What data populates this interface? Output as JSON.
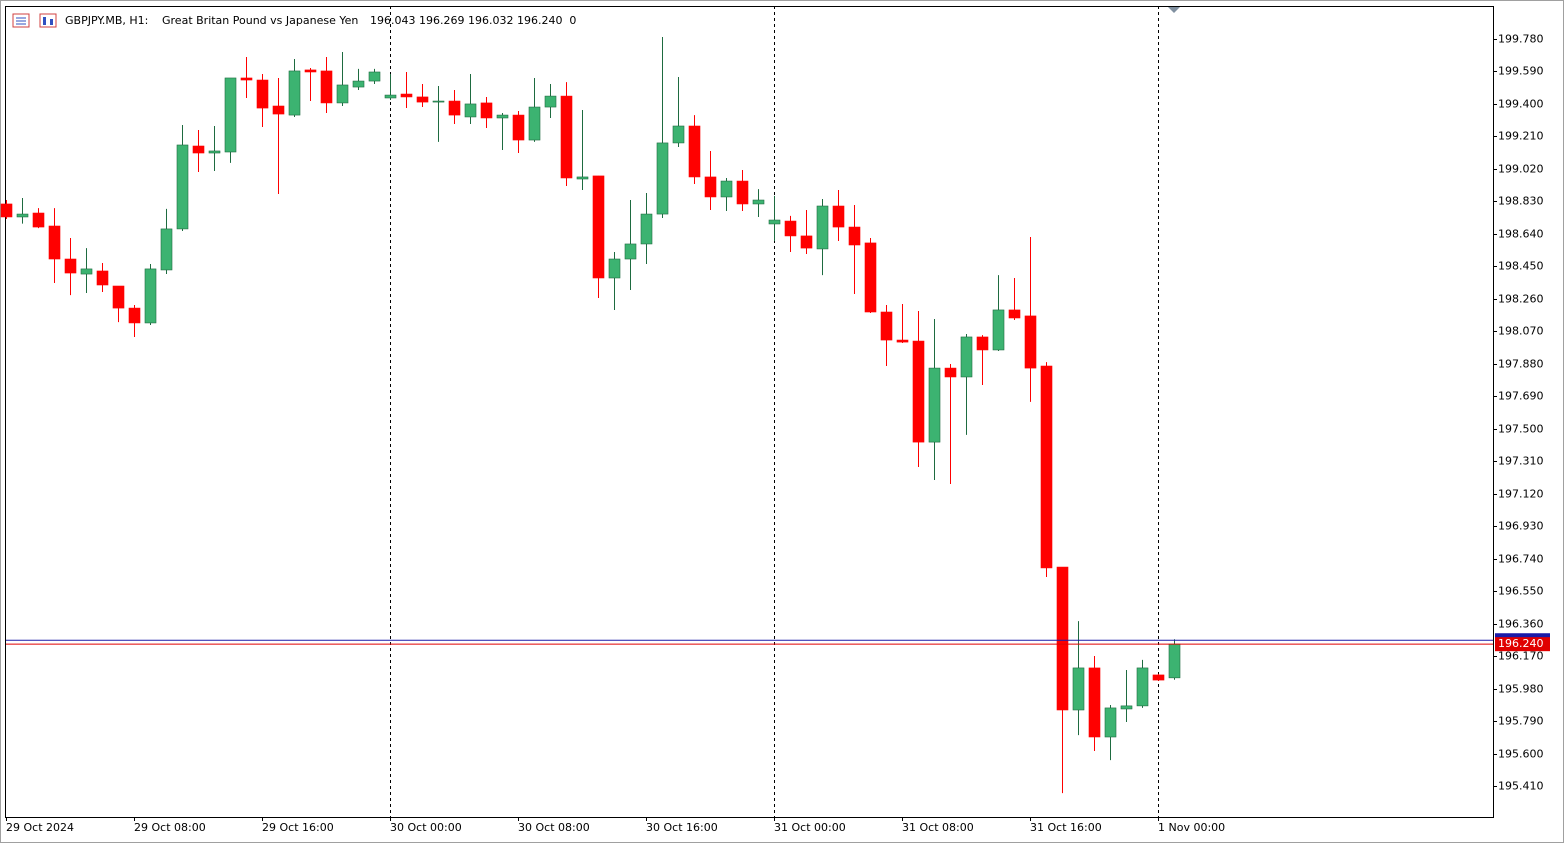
{
  "chart_data": {
    "type": "candlestick",
    "symbol": "GBPJPY.MB, H1:",
    "description": "Great Britan Pound vs Japanese Yen",
    "header_values": "196.043 196.269 196.032 196.240  0",
    "categories": [
      "29 Oct 2024",
      null,
      null,
      null,
      null,
      null,
      null,
      null,
      "29 Oct 08:00",
      null,
      null,
      null,
      null,
      null,
      null,
      null,
      "29 Oct 16:00",
      null,
      null,
      null,
      null,
      null,
      null,
      null,
      "30 Oct 00:00",
      null,
      null,
      null,
      null,
      null,
      null,
      null,
      "30 Oct 08:00",
      null,
      null,
      null,
      null,
      null,
      null,
      null,
      "30 Oct 16:00",
      null,
      null,
      null,
      null,
      null,
      null,
      null,
      "31 Oct 00:00",
      null,
      null,
      null,
      null,
      null,
      null,
      null,
      "31 Oct 08:00",
      null,
      null,
      null,
      null,
      null,
      null,
      null,
      "31 Oct 16:00",
      null,
      null,
      null,
      null,
      null,
      null,
      null,
      "1 Nov 00:00",
      null
    ],
    "open": [
      198.815,
      198.739,
      198.762,
      198.686,
      198.493,
      198.405,
      198.423,
      198.335,
      198.206,
      198.119,
      198.429,
      198.669,
      199.154,
      199.113,
      199.119,
      199.552,
      199.54,
      199.388,
      199.335,
      199.599,
      199.593,
      199.406,
      199.499,
      199.534,
      199.435,
      199.458,
      199.441,
      199.411,
      199.417,
      199.324,
      199.406,
      199.318,
      199.335,
      199.189,
      199.382,
      199.446,
      198.961,
      198.979,
      198.382,
      198.493,
      198.581,
      198.756,
      199.172,
      199.271,
      198.973,
      198.856,
      198.949,
      198.815,
      198.698,
      198.715,
      198.628,
      198.552,
      198.803,
      198.68,
      198.587,
      198.183,
      198.019,
      198.013,
      197.422,
      197.855,
      197.803,
      198.037,
      197.961,
      198.195,
      198.16,
      197.867,
      196.691,
      195.855,
      196.101,
      195.697,
      195.861,
      195.879,
      196.06,
      196.043
    ],
    "high": [
      198.838,
      198.85,
      198.791,
      198.791,
      198.616,
      198.557,
      198.47,
      198.335,
      198.224,
      198.464,
      198.786,
      199.277,
      199.248,
      199.271,
      199.552,
      199.675,
      199.575,
      199.552,
      199.663,
      199.61,
      199.675,
      199.704,
      199.605,
      199.605,
      199.575,
      199.587,
      199.517,
      199.505,
      199.482,
      199.575,
      199.441,
      199.347,
      199.359,
      199.552,
      199.517,
      199.528,
      199.365,
      198.979,
      198.534,
      198.838,
      198.879,
      199.792,
      199.558,
      199.335,
      199.125,
      198.967,
      199.014,
      198.902,
      198.862,
      198.745,
      198.78,
      198.844,
      198.897,
      198.809,
      198.616,
      198.224,
      198.23,
      198.189,
      198.142,
      197.879,
      198.054,
      198.048,
      198.399,
      198.382,
      198.622,
      197.89,
      196.691,
      196.375,
      196.171,
      195.884,
      196.089,
      196.148,
      196.066,
      196.269
    ],
    "low": [
      198.727,
      198.7,
      198.674,
      198.353,
      198.282,
      198.294,
      198.3,
      198.124,
      198.037,
      198.107,
      198.405,
      198.657,
      199.002,
      199.008,
      199.055,
      199.435,
      199.265,
      198.873,
      199.324,
      199.417,
      199.347,
      199.388,
      199.482,
      199.517,
      199.423,
      199.376,
      199.382,
      199.178,
      199.283,
      199.283,
      199.259,
      199.131,
      199.113,
      199.178,
      199.318,
      198.92,
      198.897,
      198.265,
      198.195,
      198.312,
      198.464,
      198.733,
      199.148,
      198.932,
      198.78,
      198.774,
      198.774,
      198.739,
      198.598,
      198.534,
      198.522,
      198.399,
      198.598,
      198.288,
      198.177,
      197.867,
      198.002,
      197.276,
      197.2,
      197.177,
      197.464,
      197.756,
      197.955,
      198.136,
      197.657,
      196.633,
      195.369,
      195.708,
      195.615,
      195.562,
      195.785,
      195.867,
      196.025,
      196.032
    ],
    "close": [
      198.739,
      198.756,
      198.68,
      198.493,
      198.411,
      198.435,
      198.341,
      198.206,
      198.119,
      198.435,
      198.669,
      199.16,
      199.113,
      199.125,
      199.552,
      199.54,
      199.376,
      199.341,
      199.593,
      199.587,
      199.406,
      199.511,
      199.534,
      199.587,
      199.452,
      199.441,
      199.411,
      199.417,
      199.335,
      199.4,
      199.318,
      199.335,
      199.189,
      199.382,
      199.446,
      198.967,
      198.973,
      198.382,
      198.493,
      198.581,
      198.756,
      199.172,
      199.271,
      198.973,
      198.856,
      198.949,
      198.815,
      198.838,
      198.721,
      198.628,
      198.557,
      198.803,
      198.68,
      198.575,
      198.183,
      198.019,
      198.007,
      197.422,
      197.855,
      197.803,
      198.037,
      197.961,
      198.195,
      198.148,
      197.855,
      196.686,
      195.855,
      196.101,
      195.697,
      195.867,
      195.879,
      196.101,
      196.03,
      196.24
    ],
    "up_color": "#3cb371",
    "up_line": "#1e6b40",
    "down_color": "#ff0000",
    "bid": {
      "value": 196.24,
      "label": "196.240"
    },
    "bid_color": "#e00000",
    "ask": 196.263,
    "ask_color": "#1a1aa8",
    "ylim": [
      195.229,
      199.973
    ],
    "yticks": [
      {
        "value": 199.78,
        "label": "199.780"
      },
      {
        "value": 199.59,
        "label": "199.590"
      },
      {
        "value": 199.4,
        "label": "199.400"
      },
      {
        "value": 199.21,
        "label": "199.210"
      },
      {
        "value": 199.02,
        "label": "199.020"
      },
      {
        "value": 198.83,
        "label": "198.830"
      },
      {
        "value": 198.64,
        "label": "198.640"
      },
      {
        "value": 198.45,
        "label": "198.450"
      },
      {
        "value": 198.26,
        "label": "198.260"
      },
      {
        "value": 198.07,
        "label": "198.070"
      },
      {
        "value": 197.88,
        "label": "197.880"
      },
      {
        "value": 197.69,
        "label": "197.690"
      },
      {
        "value": 197.5,
        "label": "197.500"
      },
      {
        "value": 197.31,
        "label": "197.310"
      },
      {
        "value": 197.12,
        "label": "197.120"
      },
      {
        "value": 196.93,
        "label": "196.930"
      },
      {
        "value": 196.74,
        "label": "196.740"
      },
      {
        "value": 196.55,
        "label": "196.550"
      },
      {
        "value": 196.36,
        "label": "196.360"
      },
      {
        "value": 196.17,
        "label": "196.170"
      },
      {
        "value": 195.98,
        "label": "195.980"
      },
      {
        "value": 195.79,
        "label": "195.790"
      },
      {
        "value": 195.6,
        "label": "195.600"
      },
      {
        "value": 195.41,
        "label": "195.410"
      }
    ]
  }
}
